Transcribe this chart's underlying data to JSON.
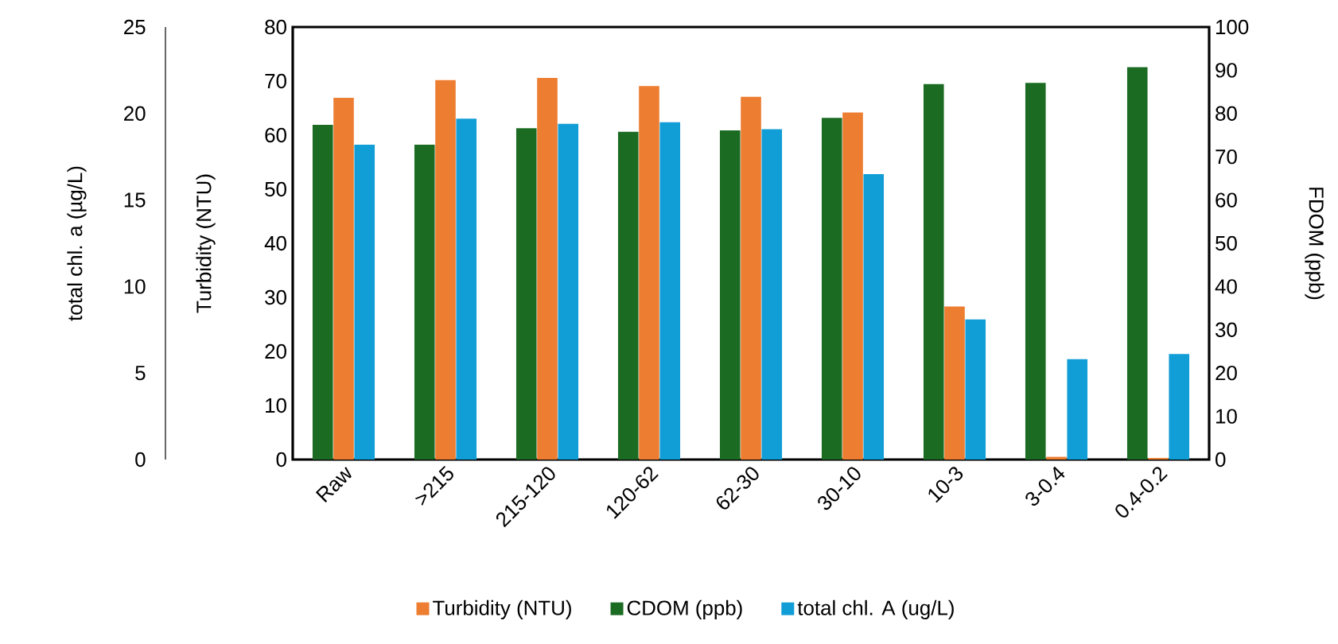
{
  "chart_data": {
    "type": "bar",
    "categories": [
      "Raw",
      ">215",
      "215-120",
      "120-62",
      "62-30",
      "30-10",
      "10-3",
      "3-0.4",
      "0.4-0.2"
    ],
    "ylabel": "Turbidity (NTU)",
    "y2label": "FDOM (ppb)",
    "y3label": "total chl. a (µg/L)",
    "ylim": [
      0,
      80
    ],
    "yticks": [
      0,
      10,
      20,
      30,
      40,
      50,
      60,
      70,
      80
    ],
    "y2lim": [
      0,
      100
    ],
    "y2ticks": [
      0,
      10,
      20,
      30,
      40,
      50,
      60,
      70,
      80,
      90,
      100
    ],
    "y3lim": [
      0,
      25
    ],
    "y3ticks": [
      0,
      5,
      10,
      15,
      20,
      25
    ],
    "legend": "bottom",
    "series": [
      {
        "name": "Turbidity (NTU)",
        "color": "#ed7d31",
        "axis": "y",
        "values": [
          66.9,
          70.2,
          70.6,
          69.1,
          67.1,
          64.2,
          28.3,
          0.5,
          0.3
        ]
      },
      {
        "name": "CDOM (ppb)",
        "color": "#1b6b23",
        "axis": "y2",
        "values": [
          77.4,
          72.8,
          76.6,
          75.8,
          76.1,
          79.0,
          86.8,
          87.1,
          90.7
        ]
      },
      {
        "name": "total chl. A (ug/L)",
        "color": "#119dd6",
        "axis": "y3",
        "values": [
          18.2,
          19.7,
          19.4,
          19.5,
          19.1,
          16.5,
          8.1,
          5.8,
          6.1
        ]
      }
    ]
  }
}
